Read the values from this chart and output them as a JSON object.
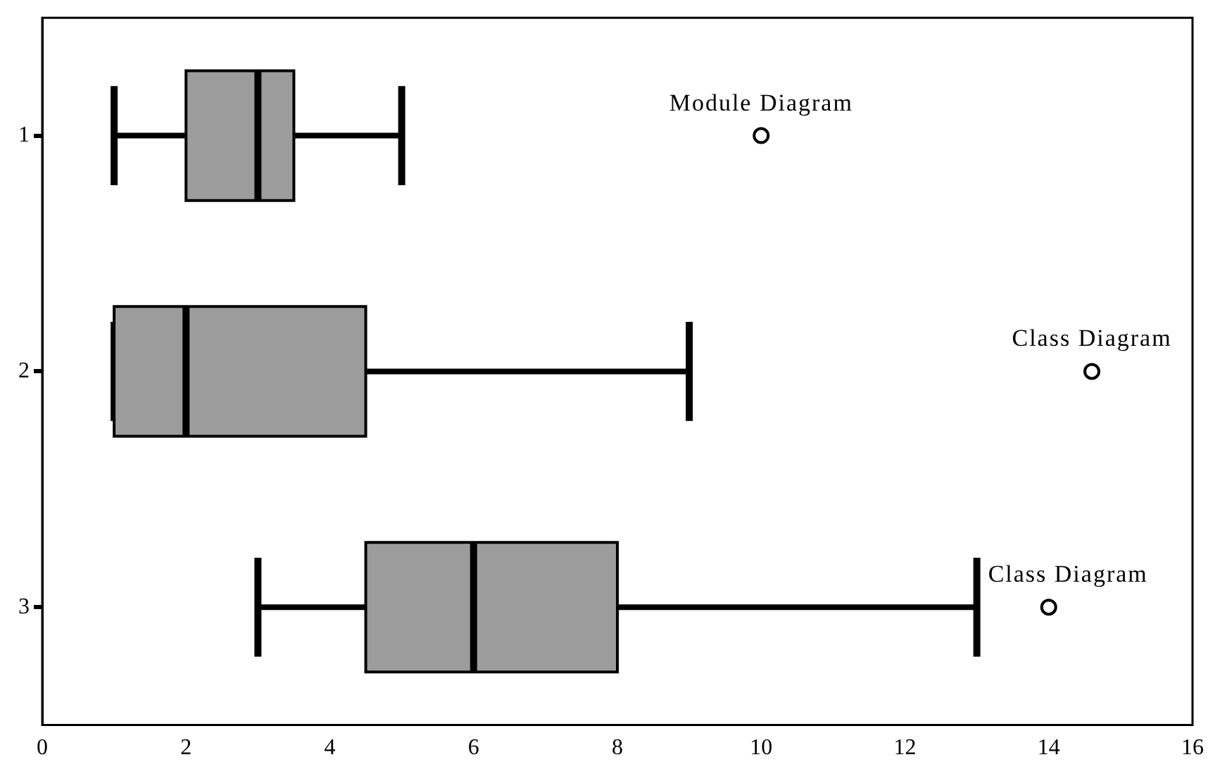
{
  "chart_data": {
    "type": "box",
    "orientation": "horizontal",
    "categories": [
      "1",
      "2",
      "3"
    ],
    "boxes": [
      {
        "low": 1,
        "q1": 2,
        "median": 3,
        "q3": 3.5,
        "high": 5,
        "outliers": [
          10
        ]
      },
      {
        "low": 1,
        "q1": 1,
        "median": 2,
        "q3": 4.5,
        "high": 9,
        "outliers": [
          14.6
        ]
      },
      {
        "low": 3,
        "q1": 4.5,
        "median": 6,
        "q3": 8,
        "high": 13,
        "outliers": [
          14
        ]
      }
    ],
    "color": "#9c9c9c",
    "xlim": [
      0,
      16
    ],
    "xticks": [
      0,
      2,
      4,
      6,
      8,
      10,
      12,
      14,
      16
    ],
    "grid": false,
    "legend": false,
    "annotations": [
      "Module Diagram",
      "Class Diagram",
      "Class Diagram"
    ]
  }
}
